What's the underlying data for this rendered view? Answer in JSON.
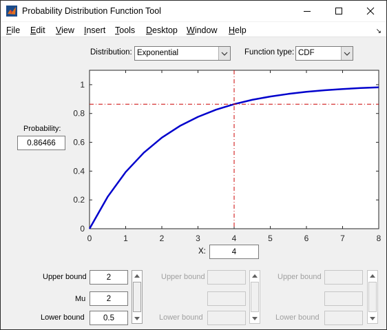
{
  "window": {
    "title": "Probability Distribution Function Tool"
  },
  "menu": {
    "file": {
      "u": "F",
      "rest": "ile"
    },
    "edit": {
      "u": "E",
      "rest": "dit"
    },
    "view": {
      "u": "V",
      "rest": "iew"
    },
    "insert": {
      "u": "I",
      "rest": "nsert"
    },
    "tools": {
      "u": "T",
      "rest": "ools"
    },
    "desktop": {
      "u": "D",
      "rest": "esktop"
    },
    "window": {
      "u": "W",
      "rest": "indow"
    },
    "help": {
      "u": "H",
      "rest": "elp"
    }
  },
  "controls": {
    "distribution_label": "Distribution:",
    "distribution_value": "Exponential",
    "function_type_label": "Function type:",
    "function_type_value": "CDF",
    "probability_label": "Probability:",
    "probability_value": "0.86466",
    "x_label": "X:",
    "x_value": "4"
  },
  "params": {
    "col1": {
      "upper_label": "Upper bound",
      "upper_value": "2",
      "param_label": "Mu",
      "param_value": "2",
      "lower_label": "Lower bound",
      "lower_value": "0.5"
    },
    "col2": {
      "upper_label": "Upper bound",
      "lower_label": "Lower bound"
    },
    "col3": {
      "upper_label": "Upper bound",
      "lower_label": "Lower bound"
    }
  },
  "chart_data": {
    "type": "line",
    "title": "",
    "xlabel": "",
    "ylabel": "",
    "xlim": [
      0,
      8
    ],
    "ylim": [
      0,
      1.1
    ],
    "xticks": [
      0,
      1,
      2,
      3,
      4,
      5,
      6,
      7,
      8
    ],
    "yticks": [
      0,
      0.2,
      0.4,
      0.6,
      0.8,
      1
    ],
    "grid": false,
    "series": [
      {
        "color": "#0000cc",
        "x": [
          0,
          0.5,
          1,
          1.5,
          2,
          2.5,
          3,
          3.5,
          4,
          4.5,
          5,
          5.5,
          6,
          6.5,
          7,
          7.5,
          8
        ],
        "y": [
          0,
          0.2212,
          0.3935,
          0.5276,
          0.6321,
          0.7135,
          0.7769,
          0.8262,
          0.8647,
          0.8946,
          0.9179,
          0.9361,
          0.9502,
          0.9612,
          0.9698,
          0.9765,
          0.9817
        ]
      }
    ],
    "crosshair": {
      "x": 4,
      "y": 0.86466,
      "color": "#cc0000",
      "style": "dash-dot"
    }
  }
}
